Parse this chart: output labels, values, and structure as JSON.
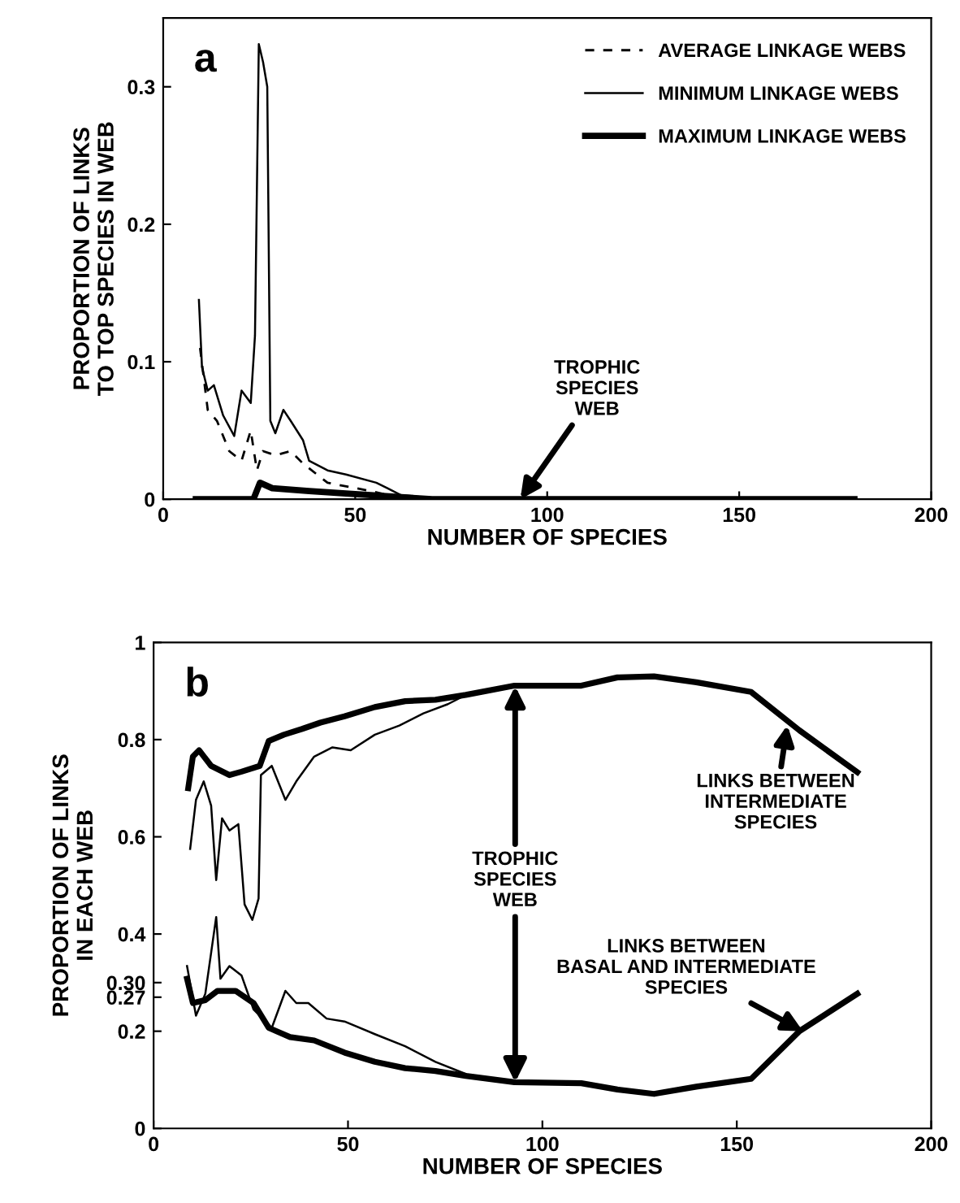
{
  "chart_data": [
    {
      "type": "line",
      "xlabel": "NUMBER OF SPECIES",
      "ylabel": "PROPORTION OF LINKS\nTO TOP SPECIES IN WEB",
      "xlim": [
        0,
        200
      ],
      "xticks": [
        0,
        50,
        100,
        150,
        200
      ],
      "ylim": [
        0,
        0.35
      ],
      "yticks": [
        0,
        0.1,
        0.2,
        0.3
      ],
      "legend": "top right",
      "grid": false,
      "annotations": [
        "a",
        {
          "text": "TROPHIC\nSPECIES\nWEB",
          "x": 93,
          "y": 0
        }
      ],
      "series": [
        {
          "name": "AVERAGE LINKAGE WEBS",
          "color": "#000000",
          "line_style": "dashed",
          "x": [
            9.6,
            11.6,
            14,
            17.2,
            20.4,
            22.8,
            24.4,
            26,
            29.2,
            33.2,
            36.4,
            42.8,
            54,
            61.9,
            70,
            180
          ],
          "values": [
            0.11,
            0.065,
            0.057,
            0.035,
            0.028,
            0.05,
            0.021,
            0.035,
            0.032,
            0.035,
            0.026,
            0.012,
            0.006,
            0.001,
            0,
            0
          ]
        },
        {
          "name": "MINIMUM LINKAGE WEBS",
          "color": "#000000",
          "line_style": "solid",
          "x": [
            9.3,
            10.1,
            11.6,
            13.2,
            15.6,
            18.5,
            20.4,
            22.8,
            23.9,
            24.9,
            26,
            27.1,
            27.9,
            29.2,
            31.3,
            33.2,
            36.4,
            38,
            42.8,
            47.6,
            55.5,
            58.4,
            61.9,
            69.9,
            180
          ],
          "values": [
            0.145,
            0.096,
            0.079,
            0.083,
            0.061,
            0.046,
            0.079,
            0.07,
            0.119,
            0.331,
            0.318,
            0.3,
            0.057,
            0.048,
            0.065,
            0.057,
            0.043,
            0.028,
            0.021,
            0.018,
            0.012,
            0.008,
            0.003,
            0.001,
            0
          ]
        },
        {
          "name": "MAXIMUM LINKAGE WEBS",
          "color": "#000000",
          "line_style": "solid",
          "x": [
            8.5,
            23.5,
            25.2,
            28.4,
            38,
            54,
            70,
            180
          ],
          "values": [
            0,
            0,
            0.012,
            0.008,
            0.006,
            0.003,
            0,
            0
          ]
        }
      ]
    },
    {
      "type": "line",
      "xlabel": "NUMBER OF SPECIES",
      "ylabel": "PROPORTION OF LINKS\nIN EACH WEB",
      "xlim": [
        0,
        200
      ],
      "xticks": [
        0,
        50,
        100,
        150,
        200
      ],
      "ylim": [
        0,
        1
      ],
      "yticks": [
        0,
        0.2,
        {
          "value": 0.27,
          "label": "0.27"
        },
        {
          "value": 0.3,
          "label": "0.30"
        },
        0.4,
        0.6,
        0.8,
        1
      ],
      "grid": false,
      "annotations": [
        "b",
        {
          "text": "TROPHIC\nSPECIES\nWEB",
          "x": 93,
          "y": 0.91
        },
        {
          "text": "LINKS BETWEEN\nINTERMEDIATE\nSPECIES",
          "x": 163,
          "y": 0.83
        },
        {
          "text": "LINKS BETWEEN\nBASAL AND INTERMEDIATE\nSPECIES",
          "x": 167,
          "y": 0.2
        }
      ],
      "series": [
        {
          "color": "#000000",
          "line_style": "solid",
          "x": [
            8.9,
            10.1,
            11.7,
            14.8,
            19.5,
            22.6,
            27.3,
            29.6,
            33.5,
            38.2,
            42.9,
            49.1,
            56.9,
            64.7,
            72.5,
            80.3,
            92.8,
            110,
            119.3,
            128.7,
            139.6,
            153.7,
            166.1,
            181
          ],
          "values": [
            0.7,
            0.765,
            0.778,
            0.746,
            0.727,
            0.734,
            0.746,
            0.797,
            0.81,
            0.822,
            0.835,
            0.848,
            0.867,
            0.879,
            0.882,
            0.892,
            0.911,
            0.911,
            0.928,
            0.93,
            0.918,
            0.898,
            0.819,
            0.733
          ]
        },
        {
          "color": "#000000",
          "line_style": "solid",
          "x": [
            9.4,
            10.9,
            12.9,
            14.8,
            16.1,
            17.6,
            19.5,
            21.8,
            23.4,
            25.4,
            27,
            27.6,
            30.4,
            33.9,
            36.7,
            41.3,
            46,
            50.7,
            56.9,
            63.2,
            69.4,
            75.7,
            80.3
          ],
          "values": [
            0.575,
            0.676,
            0.714,
            0.664,
            0.511,
            0.638,
            0.613,
            0.626,
            0.461,
            0.429,
            0.473,
            0.727,
            0.746,
            0.676,
            0.714,
            0.765,
            0.784,
            0.778,
            0.81,
            0.829,
            0.854,
            0.873,
            0.892
          ]
        },
        {
          "color": "#000000",
          "line_style": "solid",
          "x": [
            8.6,
            10.1,
            13.3,
            16.4,
            21.1,
            25.7,
            29.6,
            35.1,
            41.3,
            49.1,
            56.9,
            64.7,
            72.5,
            80.3,
            92.8,
            110,
            119.3,
            128.7,
            139.6,
            153.7,
            166.1,
            181
          ],
          "values": [
            0.308,
            0.258,
            0.264,
            0.283,
            0.283,
            0.258,
            0.207,
            0.188,
            0.181,
            0.156,
            0.137,
            0.124,
            0.118,
            0.108,
            0.095,
            0.093,
            0.08,
            0.071,
            0.086,
            0.102,
            0.2,
            0.277
          ]
        },
        {
          "color": "#000000",
          "line_style": "solid",
          "x": [
            8.6,
            10.9,
            13.3,
            16.1,
            17.2,
            19.5,
            22.6,
            25.7,
            30.4,
            33.9,
            36.7,
            39.8,
            44.5,
            49.1,
            56.9,
            64.7,
            72.5,
            80.3
          ],
          "values": [
            0.334,
            0.232,
            0.277,
            0.435,
            0.308,
            0.334,
            0.315,
            0.245,
            0.207,
            0.283,
            0.258,
            0.258,
            0.226,
            0.22,
            0.194,
            0.169,
            0.137,
            0.112
          ]
        }
      ]
    }
  ]
}
